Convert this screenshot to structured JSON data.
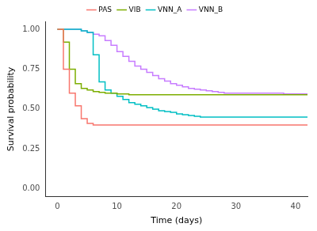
{
  "chart_data": {
    "type": "line",
    "x_label": "Time (days)",
    "y_label": "Survival probability",
    "x": [
      0,
      1,
      2,
      3,
      4,
      5,
      6,
      7,
      8,
      9,
      10,
      11,
      12,
      13,
      14,
      15,
      16,
      17,
      18,
      19,
      20,
      21,
      22,
      23,
      24,
      25,
      26,
      27,
      28,
      29,
      30,
      31,
      32,
      33,
      34,
      35,
      36,
      37,
      38,
      39,
      40,
      41,
      42
    ],
    "series": [
      {
        "name": "PAS",
        "color": "#F8766D",
        "line_style": "step",
        "values": [
          1,
          0.75,
          0.6,
          0.52,
          0.44,
          0.41,
          0.4,
          0.4,
          0.4,
          0.4,
          0.4,
          0.4,
          0.4,
          0.4,
          0.4,
          0.4,
          0.4,
          0.4,
          0.4,
          0.4,
          0.4,
          0.4,
          0.4,
          0.4,
          0.4,
          0.4,
          0.4,
          0.4,
          0.4,
          0.4,
          0.4,
          0.4,
          0.4,
          0.4,
          0.4,
          0.4,
          0.4,
          0.4,
          0.4,
          0.4,
          0.4,
          0.4,
          0.4
        ]
      },
      {
        "name": "VIB",
        "color": "#7CAE00",
        "line_style": "step",
        "values": [
          1,
          0.92,
          0.75,
          0.66,
          0.63,
          0.62,
          0.61,
          0.605,
          0.6,
          0.6,
          0.595,
          0.595,
          0.59,
          0.59,
          0.59,
          0.59,
          0.59,
          0.59,
          0.59,
          0.59,
          0.59,
          0.59,
          0.59,
          0.59,
          0.59,
          0.59,
          0.59,
          0.59,
          0.59,
          0.59,
          0.59,
          0.59,
          0.59,
          0.59,
          0.59,
          0.59,
          0.59,
          0.59,
          0.59,
          0.59,
          0.59,
          0.59,
          0.59
        ]
      },
      {
        "name": "VNN_A",
        "color": "#00BFC4",
        "line_style": "step",
        "values": [
          1,
          1,
          1,
          1,
          0.99,
          0.98,
          0.84,
          0.67,
          0.62,
          0.6,
          0.58,
          0.56,
          0.54,
          0.53,
          0.52,
          0.51,
          0.5,
          0.49,
          0.485,
          0.48,
          0.47,
          0.465,
          0.46,
          0.455,
          0.45,
          0.45,
          0.45,
          0.45,
          0.45,
          0.45,
          0.45,
          0.45,
          0.45,
          0.45,
          0.45,
          0.45,
          0.45,
          0.45,
          0.45,
          0.45,
          0.45,
          0.45,
          0.45
        ]
      },
      {
        "name": "VNN_B",
        "color": "#C77CFF",
        "line_style": "step",
        "values": [
          1,
          1,
          1,
          1,
          0.99,
          0.98,
          0.97,
          0.96,
          0.93,
          0.9,
          0.86,
          0.83,
          0.8,
          0.77,
          0.75,
          0.73,
          0.71,
          0.69,
          0.675,
          0.66,
          0.65,
          0.64,
          0.63,
          0.625,
          0.62,
          0.615,
          0.61,
          0.605,
          0.6,
          0.6,
          0.6,
          0.6,
          0.6,
          0.6,
          0.6,
          0.6,
          0.6,
          0.6,
          0.595,
          0.595,
          0.595,
          0.595,
          0.595
        ]
      }
    ],
    "xlim": [
      -2,
      42
    ],
    "xticks": [
      0,
      10,
      20,
      30,
      40
    ],
    "ylim": [
      -0.05,
      1.05
    ],
    "yticks": [
      {
        "value": 0,
        "label": "0.00"
      },
      {
        "value": 0.25,
        "label": "0.25"
      },
      {
        "value": 0.5,
        "label": "0.50"
      },
      {
        "value": 0.75,
        "label": "0.75"
      },
      {
        "value": 1,
        "label": "1.00"
      }
    ],
    "legend": "top",
    "grid": false
  }
}
